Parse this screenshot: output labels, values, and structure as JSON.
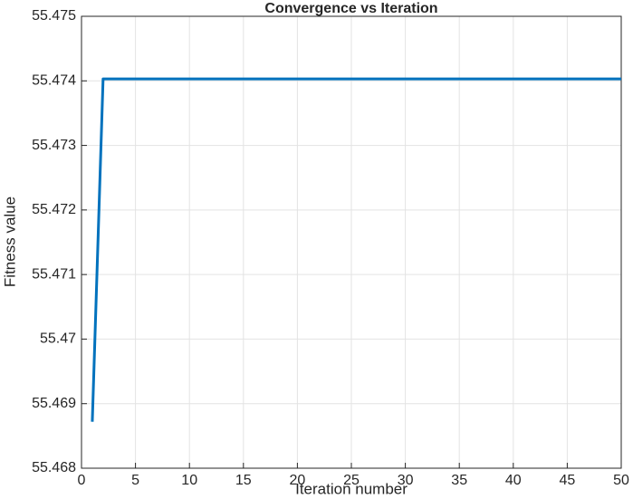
{
  "chart_data": {
    "type": "line",
    "title": "Convergence vs Iteration",
    "x_label": "Iteration number",
    "y_label": "Fitness value",
    "x": [
      1,
      2,
      3,
      4,
      5,
      6,
      7,
      8,
      9,
      10,
      11,
      12,
      13,
      14,
      15,
      16,
      17,
      18,
      19,
      20,
      21,
      22,
      23,
      24,
      25,
      26,
      27,
      28,
      29,
      30,
      31,
      32,
      33,
      34,
      35,
      36,
      37,
      38,
      39,
      40,
      41,
      42,
      43,
      44,
      45,
      46,
      47,
      48,
      49,
      50
    ],
    "series": [
      {
        "color": "#0072bd",
        "values": [
          55.46872,
          55.47403,
          55.47403,
          55.47403,
          55.47403,
          55.47403,
          55.47403,
          55.47403,
          55.47403,
          55.47403,
          55.47403,
          55.47403,
          55.47403,
          55.47403,
          55.47403,
          55.47403,
          55.47403,
          55.47403,
          55.47403,
          55.47403,
          55.47403,
          55.47403,
          55.47403,
          55.47403,
          55.47403,
          55.47403,
          55.47403,
          55.47403,
          55.47403,
          55.47403,
          55.47403,
          55.47403,
          55.47403,
          55.47403,
          55.47403,
          55.47403,
          55.47403,
          55.47403,
          55.47403,
          55.47403,
          55.47403,
          55.47403,
          55.47403,
          55.47403,
          55.47403,
          55.47403,
          55.47403,
          55.47403,
          55.47403,
          55.47403
        ]
      }
    ],
    "xlim": [
      0,
      50
    ],
    "xticks": [
      0,
      5,
      10,
      15,
      20,
      25,
      30,
      35,
      40,
      45,
      50
    ],
    "ylim": [
      55.468,
      55.475
    ],
    "yticks": [
      55.468,
      55.469,
      55.47,
      55.471,
      55.472,
      55.473,
      55.474,
      55.475
    ],
    "grid": true
  }
}
